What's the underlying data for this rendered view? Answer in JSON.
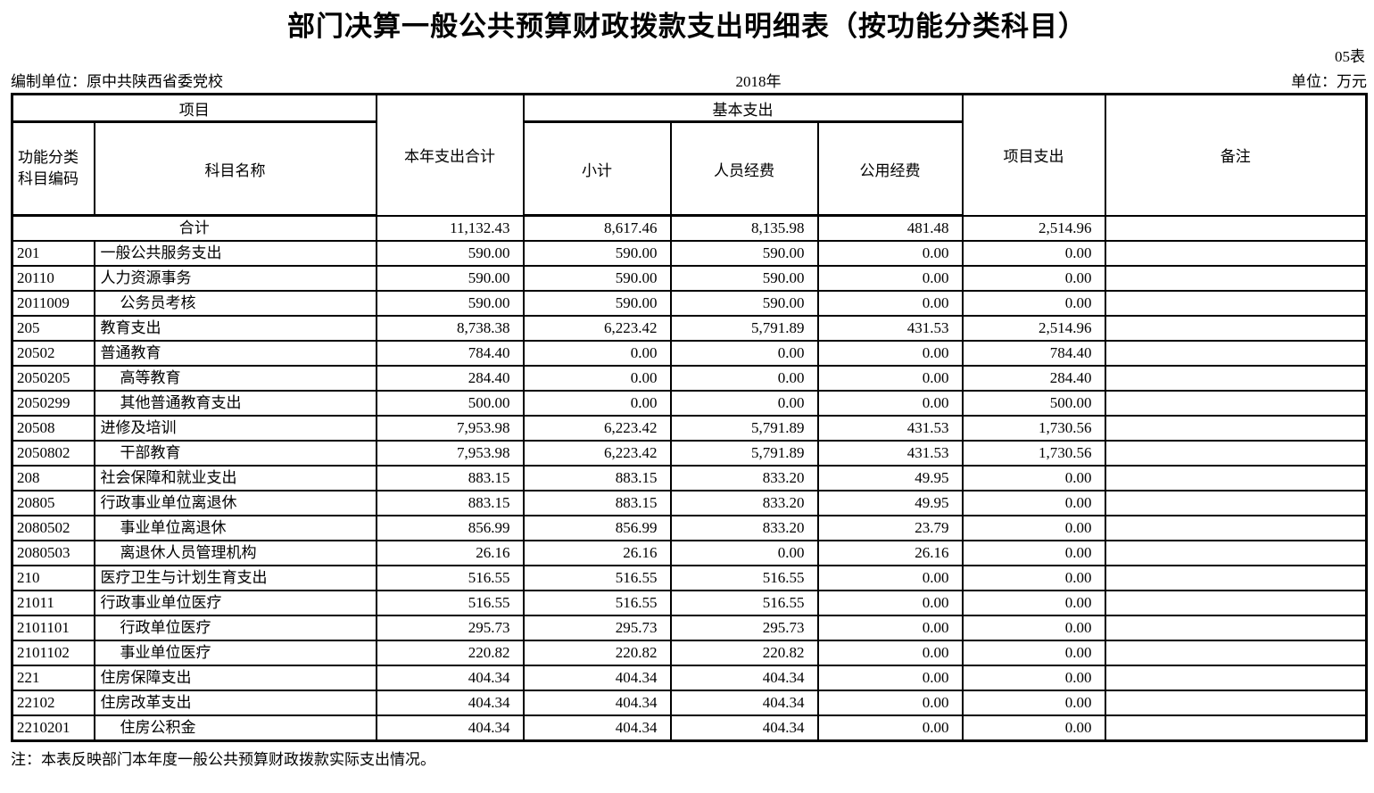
{
  "title": "部门决算一般公共预算财政拨款支出明细表（按功能分类科目）",
  "form_no": "05表",
  "meta": {
    "prepared_by": "编制单位：原中共陕西省委党校",
    "year": "2018年",
    "unit": "单位：万元"
  },
  "table": {
    "headers": {
      "project_group": "项目",
      "code": "功能分类\n科目编码",
      "subject_name": "科目名称",
      "year_total": "本年支出合计",
      "basic_group": "基本支出",
      "subtotal": "小计",
      "personnel": "人员经费",
      "public": "公用经费",
      "project_expense": "项目支出",
      "remark": "备注"
    },
    "total_row": {
      "label": "合计",
      "values": [
        "11,132.43",
        "8,617.46",
        "8,135.98",
        "481.48",
        "2,514.96"
      ],
      "remark": ""
    },
    "rows": [
      {
        "code": "201",
        "name": "一般公共服务支出",
        "indent": false,
        "values": [
          "590.00",
          "590.00",
          "590.00",
          "0.00",
          "0.00"
        ],
        "remark": ""
      },
      {
        "code": "20110",
        "name": "人力资源事务",
        "indent": false,
        "values": [
          "590.00",
          "590.00",
          "590.00",
          "0.00",
          "0.00"
        ],
        "remark": ""
      },
      {
        "code": "2011009",
        "name": "公务员考核",
        "indent": true,
        "values": [
          "590.00",
          "590.00",
          "590.00",
          "0.00",
          "0.00"
        ],
        "remark": ""
      },
      {
        "code": "205",
        "name": "教育支出",
        "indent": false,
        "values": [
          "8,738.38",
          "6,223.42",
          "5,791.89",
          "431.53",
          "2,514.96"
        ],
        "remark": ""
      },
      {
        "code": "20502",
        "name": "普通教育",
        "indent": false,
        "values": [
          "784.40",
          "0.00",
          "0.00",
          "0.00",
          "784.40"
        ],
        "remark": ""
      },
      {
        "code": "2050205",
        "name": "高等教育",
        "indent": true,
        "values": [
          "284.40",
          "0.00",
          "0.00",
          "0.00",
          "284.40"
        ],
        "remark": ""
      },
      {
        "code": "2050299",
        "name": "其他普通教育支出",
        "indent": true,
        "values": [
          "500.00",
          "0.00",
          "0.00",
          "0.00",
          "500.00"
        ],
        "remark": ""
      },
      {
        "code": "20508",
        "name": "进修及培训",
        "indent": false,
        "values": [
          "7,953.98",
          "6,223.42",
          "5,791.89",
          "431.53",
          "1,730.56"
        ],
        "remark": ""
      },
      {
        "code": "2050802",
        "name": "干部教育",
        "indent": true,
        "values": [
          "7,953.98",
          "6,223.42",
          "5,791.89",
          "431.53",
          "1,730.56"
        ],
        "remark": ""
      },
      {
        "code": "208",
        "name": "社会保障和就业支出",
        "indent": false,
        "values": [
          "883.15",
          "883.15",
          "833.20",
          "49.95",
          "0.00"
        ],
        "remark": ""
      },
      {
        "code": "20805",
        "name": "行政事业单位离退休",
        "indent": false,
        "values": [
          "883.15",
          "883.15",
          "833.20",
          "49.95",
          "0.00"
        ],
        "remark": ""
      },
      {
        "code": "2080502",
        "name": "事业单位离退休",
        "indent": true,
        "values": [
          "856.99",
          "856.99",
          "833.20",
          "23.79",
          "0.00"
        ],
        "remark": ""
      },
      {
        "code": "2080503",
        "name": "离退休人员管理机构",
        "indent": true,
        "values": [
          "26.16",
          "26.16",
          "0.00",
          "26.16",
          "0.00"
        ],
        "remark": ""
      },
      {
        "code": "210",
        "name": "医疗卫生与计划生育支出",
        "indent": false,
        "values": [
          "516.55",
          "516.55",
          "516.55",
          "0.00",
          "0.00"
        ],
        "remark": ""
      },
      {
        "code": "21011",
        "name": "行政事业单位医疗",
        "indent": false,
        "values": [
          "516.55",
          "516.55",
          "516.55",
          "0.00",
          "0.00"
        ],
        "remark": ""
      },
      {
        "code": "2101101",
        "name": "行政单位医疗",
        "indent": true,
        "values": [
          "295.73",
          "295.73",
          "295.73",
          "0.00",
          "0.00"
        ],
        "remark": ""
      },
      {
        "code": "2101102",
        "name": "事业单位医疗",
        "indent": true,
        "values": [
          "220.82",
          "220.82",
          "220.82",
          "0.00",
          "0.00"
        ],
        "remark": ""
      },
      {
        "code": "221",
        "name": "住房保障支出",
        "indent": false,
        "values": [
          "404.34",
          "404.34",
          "404.34",
          "0.00",
          "0.00"
        ],
        "remark": ""
      },
      {
        "code": "22102",
        "name": "住房改革支出",
        "indent": false,
        "values": [
          "404.34",
          "404.34",
          "404.34",
          "0.00",
          "0.00"
        ],
        "remark": ""
      },
      {
        "code": "2210201",
        "name": "住房公积金",
        "indent": true,
        "values": [
          "404.34",
          "404.34",
          "404.34",
          "0.00",
          "0.00"
        ],
        "remark": ""
      }
    ]
  },
  "note": "注：本表反映部门本年度一般公共预算财政拨款实际支出情况。"
}
